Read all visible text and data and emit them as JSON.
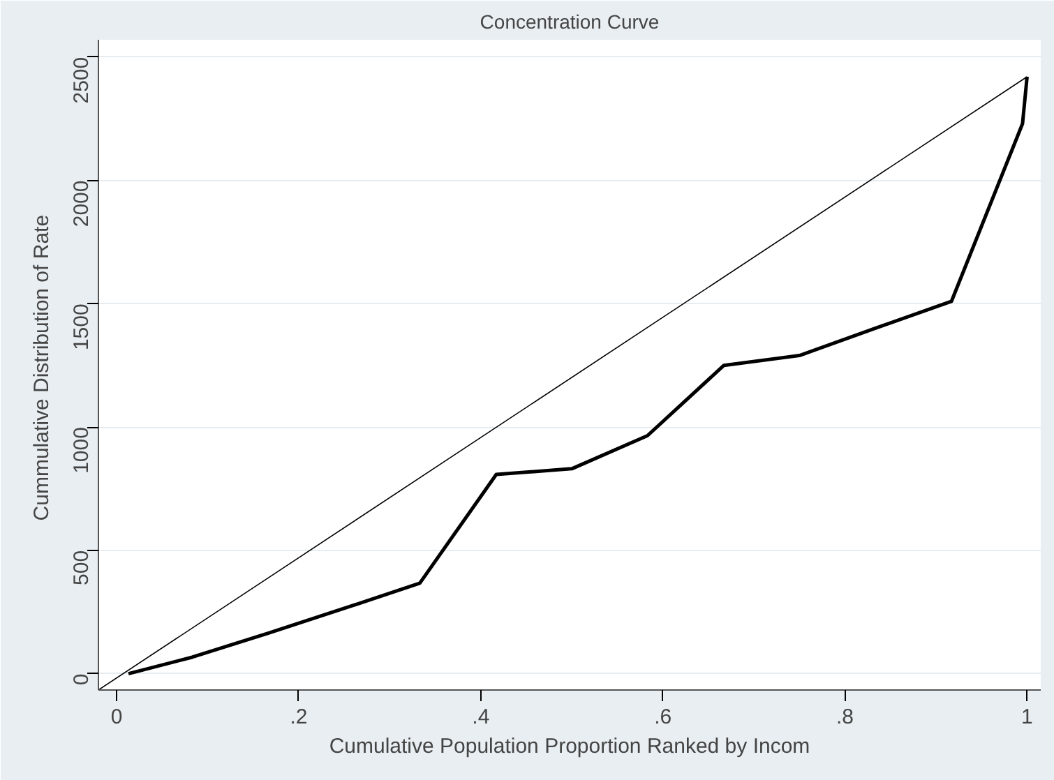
{
  "chart_data": {
    "type": "line",
    "title": "Concentration Curve",
    "xlabel": "Cumulative Population Proportion Ranked by Incom",
    "ylabel": "Cummulative  Distribution of Rate",
    "series": [
      {
        "color": "#000000",
        "x": [
          0.013,
          0.083,
          0.167,
          0.25,
          0.333,
          0.417,
          0.5,
          0.583,
          0.667,
          0.75,
          0.833,
          0.917,
          0.995,
          1.0
        ],
        "values": [
          0,
          67,
          165,
          265,
          367,
          808,
          831,
          965,
          1250,
          1290,
          1400,
          1510,
          2230,
          2420
        ]
      },
      {
        "color": "#000000",
        "x": [
          -0.02,
          1.0
        ],
        "values": [
          -66,
          2420
        ]
      }
    ],
    "xlim": [
      -0.02,
      1.015
    ],
    "ylim": [
      -66,
      2570
    ],
    "xticks": [
      0,
      {
        "value": 0.2,
        "label": ".2"
      },
      {
        "value": 0.4,
        "label": ".4"
      },
      {
        "value": 0.6,
        "label": ".6"
      },
      {
        "value": 0.8,
        "label": ".8"
      },
      1
    ],
    "yticks": [
      0,
      500,
      1000,
      1500,
      2000,
      2500
    ],
    "grid": "y",
    "marker": "none",
    "line_style": "solid"
  }
}
